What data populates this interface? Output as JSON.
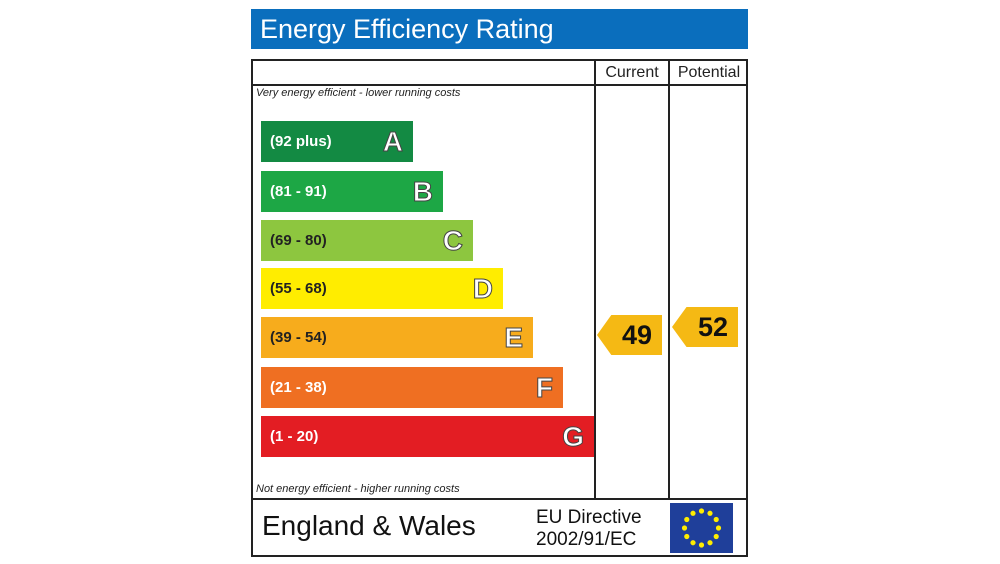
{
  "title": "Energy Efficiency Rating",
  "headers": {
    "current": "Current",
    "potential": "Potential"
  },
  "top_note": "Very energy efficient - lower running costs",
  "bottom_note": "Not energy efficient - higher running costs",
  "bands": [
    {
      "range": "(92 plus)",
      "letter": "A",
      "color": "#138a43",
      "rangeColor": "#ffffff"
    },
    {
      "range": "(81 - 91)",
      "letter": "B",
      "color": "#1da745",
      "rangeColor": "#ffffff"
    },
    {
      "range": "(69 - 80)",
      "letter": "C",
      "color": "#8dc63f",
      "rangeColor": "#222222"
    },
    {
      "range": "(55 - 68)",
      "letter": "D",
      "color": "#ffed00",
      "rangeColor": "#222222"
    },
    {
      "range": "(39 - 54)",
      "letter": "E",
      "color": "#f7ac1c",
      "rangeColor": "#222222"
    },
    {
      "range": "(21 - 38)",
      "letter": "F",
      "color": "#ef6f22",
      "rangeColor": "#ffffff"
    },
    {
      "range": "(1 - 20)",
      "letter": "G",
      "color": "#e31d23",
      "rangeColor": "#ffffff"
    }
  ],
  "current": {
    "value": "49",
    "band": "E"
  },
  "potential": {
    "value": "52",
    "band": "E"
  },
  "footer": {
    "country": "England & Wales",
    "directive_line1": "EU Directive",
    "directive_line2": "2002/91/EC"
  }
}
